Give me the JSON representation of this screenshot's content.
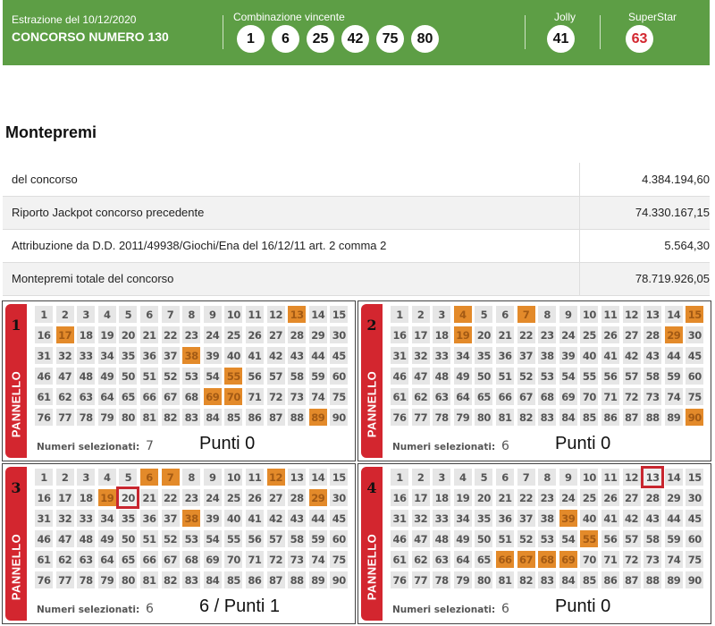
{
  "header": {
    "date": "Estrazione del 10/12/2020",
    "contest": "CONCORSO NUMERO 130",
    "combo_label": "Combinazione vincente",
    "combo": [
      "1",
      "6",
      "25",
      "42",
      "75",
      "80"
    ],
    "jolly_label": "Jolly",
    "jolly": "41",
    "superstar_label": "SuperStar",
    "superstar": "63",
    "color": "#5d9e45"
  },
  "montepremi": {
    "title": "Montepremi",
    "rows": [
      {
        "label": "del concorso",
        "value": "4.384.194,60"
      },
      {
        "label": "Riporto Jackpot concorso precedente",
        "value": "74.330.167,15"
      },
      {
        "label": "Attribuzione da D.D. 2011/49938/Giochi/Ena del 16/12/11 art. 2 comma 2",
        "value": "5.564,30"
      },
      {
        "label": "Montepremi totale del concorso",
        "value": "78.719.926,05"
      }
    ]
  },
  "panels": [
    {
      "number": "1",
      "tab_label": "PANNELLO",
      "selected": [
        13,
        17,
        38,
        55,
        69,
        70,
        89
      ],
      "outlined": [],
      "count_label": "Numeri selezionati:",
      "count": "7",
      "score": "Punti 0"
    },
    {
      "number": "2",
      "tab_label": "PANNELLO",
      "selected": [
        4,
        7,
        15,
        19,
        29,
        90
      ],
      "outlined": [],
      "count_label": "Numeri selezionati:",
      "count": "6",
      "score": "Punti 0"
    },
    {
      "number": "3",
      "tab_label": "PANNELLO",
      "selected": [
        6,
        7,
        12,
        19,
        29,
        38
      ],
      "outlined": [
        20
      ],
      "count_label": "Numeri selezionati:",
      "count": "6",
      "score": "6 / Punti 1"
    },
    {
      "number": "4",
      "tab_label": "PANNELLO",
      "selected": [
        39,
        55,
        66,
        67,
        68,
        69
      ],
      "outlined": [
        13
      ],
      "count_label": "Numeri selezionati:",
      "count": "6",
      "score": "Punti 0"
    }
  ],
  "colors": {
    "selected": "#e38a2a",
    "outline": "#c8262f",
    "tab": "#d3262f"
  }
}
